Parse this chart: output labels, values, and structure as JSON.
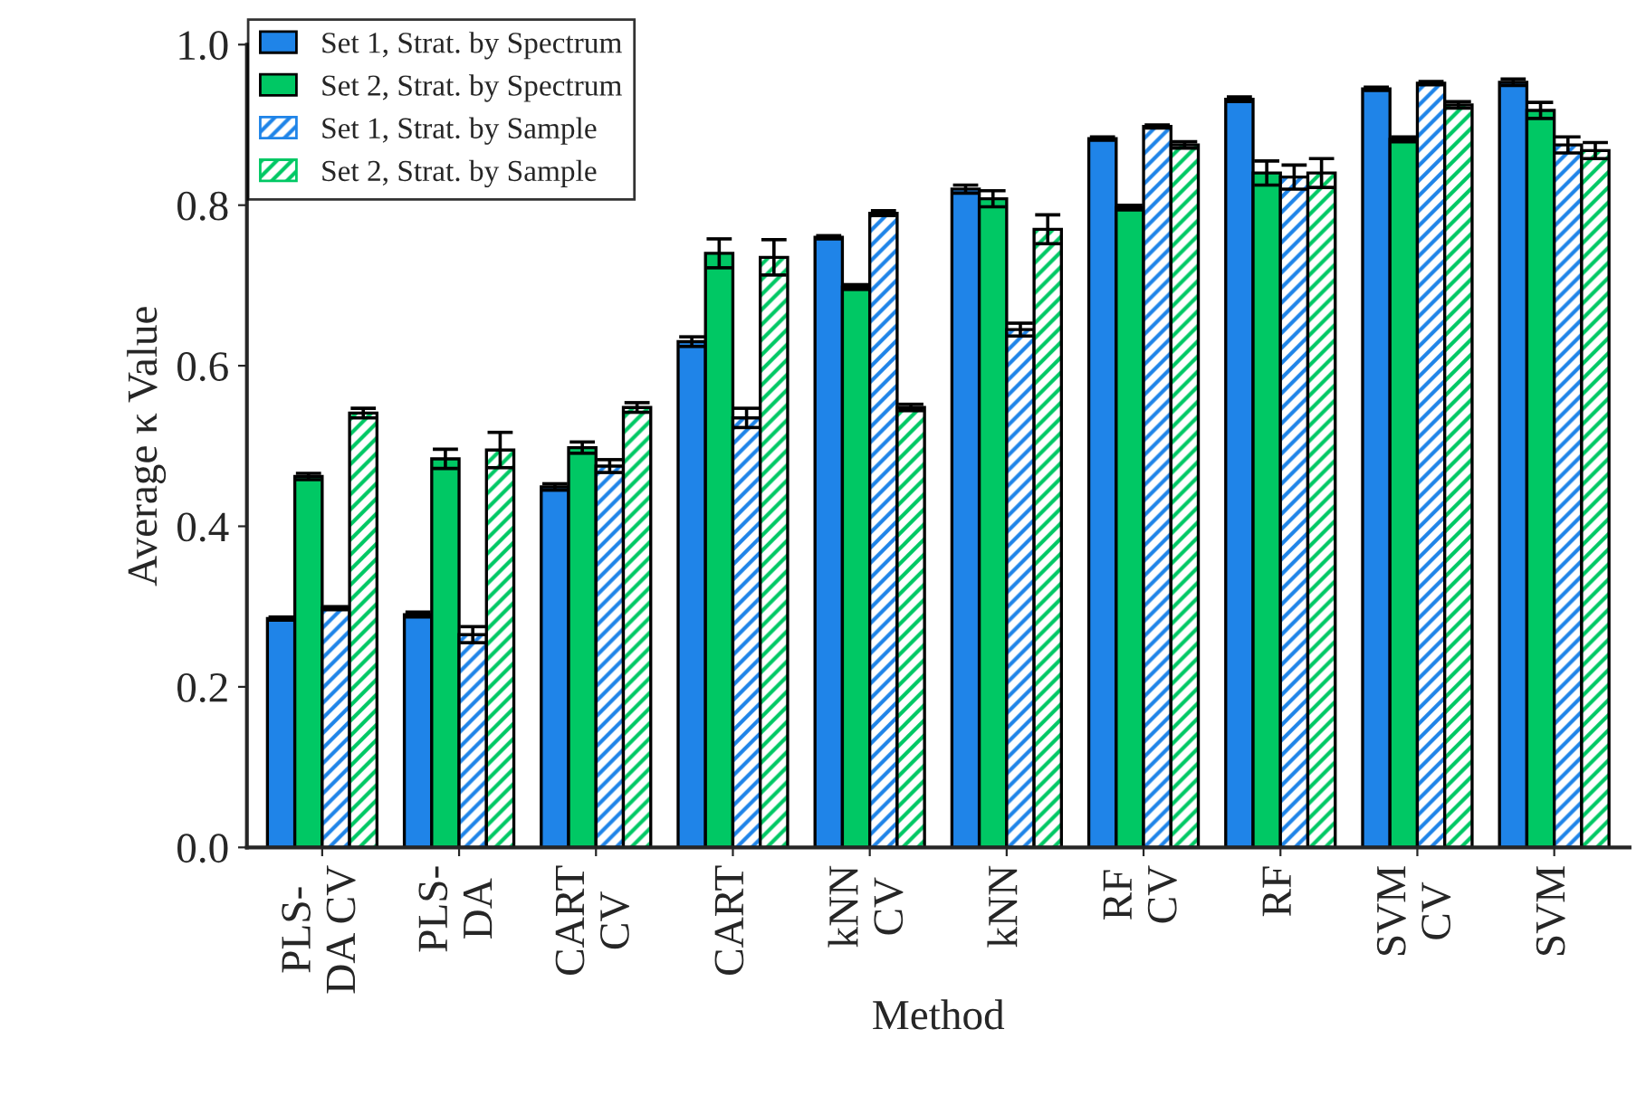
{
  "chart_data": {
    "type": "bar",
    "xlabel": "Method",
    "ylabel": "Average κ Value",
    "categories": [
      "PLS-\nDA CV",
      "PLS-\nDA",
      "CART\nCV",
      "CART",
      "kNN\nCV",
      "kNN",
      "RF\nCV",
      "RF",
      "SVM\nCV",
      "SVM"
    ],
    "series": [
      {
        "name": "Set 1, Strat. by Spectrum",
        "color": "#1f84e8",
        "values": [
          0.285,
          0.29,
          0.449,
          0.63,
          0.76,
          0.82,
          0.883,
          0.932,
          0.945,
          0.953
        ],
        "errors": [
          0.002,
          0.003,
          0.004,
          0.006,
          0.002,
          0.005,
          0.002,
          0.003,
          0.002,
          0.004
        ]
      },
      {
        "name": "Set 2, Strat. by Spectrum",
        "color": "#00c864",
        "values": [
          0.462,
          0.484,
          0.498,
          0.74,
          0.698,
          0.808,
          0.797,
          0.84,
          0.882,
          0.918
        ],
        "errors": [
          0.004,
          0.012,
          0.007,
          0.018,
          0.003,
          0.01,
          0.003,
          0.015,
          0.003,
          0.01
        ]
      },
      {
        "name": "Set 1, Strat. by Sample",
        "color": "#1f84e8",
        "values": [
          0.298,
          0.265,
          0.475,
          0.535,
          0.79,
          0.645,
          0.898,
          0.835,
          0.952,
          0.875
        ],
        "errors": [
          0.002,
          0.01,
          0.008,
          0.012,
          0.003,
          0.008,
          0.002,
          0.015,
          0.002,
          0.01
        ]
      },
      {
        "name": "Set 2, Strat. by Sample",
        "color": "#00c864",
        "values": [
          0.541,
          0.495,
          0.548,
          0.735,
          0.548,
          0.77,
          0.875,
          0.84,
          0.925,
          0.868
        ],
        "errors": [
          0.006,
          0.022,
          0.006,
          0.022,
          0.004,
          0.018,
          0.004,
          0.018,
          0.004,
          0.01
        ]
      }
    ],
    "ylim": [
      0,
      1.0
    ],
    "yticks": [
      {
        "value": 0,
        "label": "0.0"
      },
      {
        "value": 0.2,
        "label": "0.2"
      },
      {
        "value": 0.4,
        "label": "0.4"
      },
      {
        "value": 0.6,
        "label": "0.6"
      },
      {
        "value": 0.8,
        "label": "0.8"
      },
      {
        "value": 1.0,
        "label": "1.0"
      }
    ],
    "legend": "top left",
    "grid": false
  }
}
